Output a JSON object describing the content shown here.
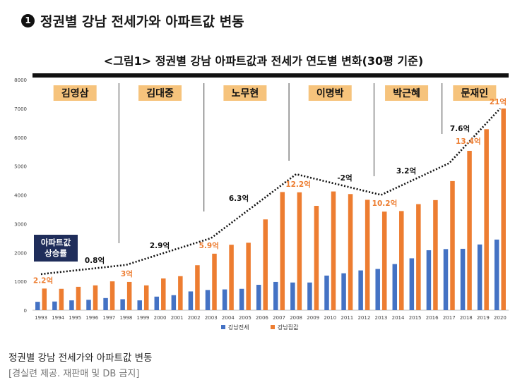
{
  "headline": {
    "bullet": "1",
    "text": "정권별 강남 전세가와 아파트값 변동"
  },
  "chart_data": {
    "type": "bar",
    "title": "<그림1> 정권별 강남 아파트값과 전세가 연도별 변화(30평 기준)",
    "xlabel": "",
    "ylabel": "",
    "ylim": [
      0,
      8000
    ],
    "yticks": [
      0,
      1000,
      2000,
      3000,
      4000,
      5000,
      6000,
      7000,
      8000
    ],
    "categories": [
      "1993",
      "1994",
      "1995",
      "1996",
      "1997",
      "1998",
      "1999",
      "2000",
      "2001",
      "2002",
      "2003",
      "2004",
      "2005",
      "2006",
      "2007",
      "2008",
      "2009",
      "2010",
      "2011",
      "2012",
      "2013",
      "2014",
      "2015",
      "2016",
      "2017",
      "2018",
      "2019",
      "2020"
    ],
    "series": [
      {
        "name": "강남전세",
        "color": "#4472c4",
        "values": [
          290,
          300,
          340,
          360,
          420,
          380,
          340,
          470,
          520,
          650,
          700,
          720,
          740,
          880,
          980,
          960,
          960,
          1200,
          1280,
          1380,
          1430,
          1600,
          1800,
          2080,
          2120,
          2130,
          2280,
          2450
        ]
      },
      {
        "name": "강남집값",
        "color": "#ed7d31",
        "values": [
          750,
          740,
          810,
          860,
          1000,
          980,
          860,
          1100,
          1180,
          1560,
          1960,
          2270,
          2340,
          3150,
          4100,
          4090,
          3620,
          4120,
          4030,
          3830,
          3420,
          3440,
          3680,
          3820,
          4480,
          5530,
          6280,
          7000
        ]
      }
    ],
    "legend": "bottom-center",
    "grid": false,
    "administrations": [
      {
        "name": "김영삼",
        "start": "1993",
        "end": "1997"
      },
      {
        "name": "김대중",
        "start": "1998",
        "end": "2002"
      },
      {
        "name": "노무현",
        "start": "2003",
        "end": "2007"
      },
      {
        "name": "이명박",
        "start": "2008",
        "end": "2012"
      },
      {
        "name": "박근혜",
        "start": "2013",
        "end": "2016"
      },
      {
        "name": "문재인",
        "start": "2017",
        "end": "2020"
      }
    ],
    "trend_line": {
      "label": "아파트값\n상승률",
      "points": [
        {
          "x": "1993",
          "y": 1250
        },
        {
          "x": "1998",
          "y": 1570
        },
        {
          "x": "2003",
          "y": 2500
        },
        {
          "x": "2008",
          "y": 4720
        },
        {
          "x": "2013",
          "y": 4000
        },
        {
          "x": "2017",
          "y": 5100
        },
        {
          "x": "2020",
          "y": 7000
        }
      ]
    },
    "annotations": {
      "price_labels": [
        {
          "x": "1993",
          "text": "2.2억"
        },
        {
          "x": "1998",
          "text": "3억"
        },
        {
          "x": "2003",
          "text": "5.9억"
        },
        {
          "x": "2008",
          "text": "12.2억"
        },
        {
          "x": "2013",
          "text": "10.2억"
        },
        {
          "x": "2018",
          "text": "13.4억"
        },
        {
          "x": "2020",
          "text": "21억"
        }
      ],
      "change_labels": [
        {
          "text": "0.8억"
        },
        {
          "text": "2.9억"
        },
        {
          "text": "6.3억"
        },
        {
          "text": "-2억"
        },
        {
          "text": "3.2억"
        },
        {
          "text": "7.6억"
        }
      ]
    }
  },
  "caption": "정권별 강남 전세가와 아파트값 변동",
  "credit": "[경실련 제공. 재판매 및 DB 금지]"
}
